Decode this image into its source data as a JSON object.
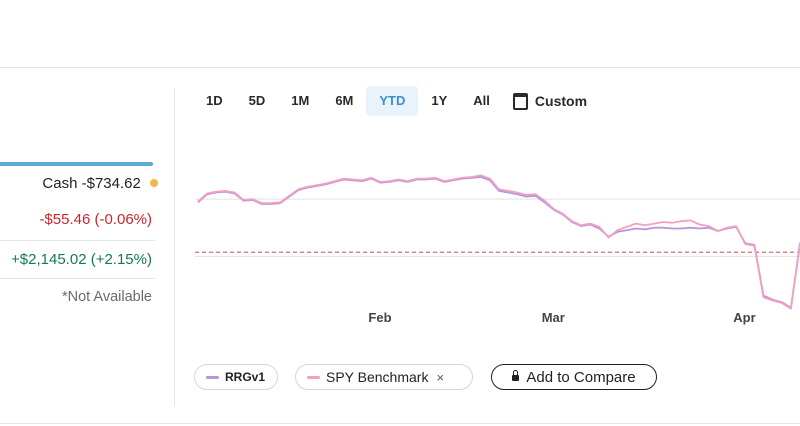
{
  "summary": {
    "cash_label": "Cash",
    "cash_value": "-$734.62",
    "day_change": "-$55.46 (-0.06%)",
    "total_change": "+$2,145.02 (+2.15%)",
    "not_available": "*Not Available"
  },
  "time_ranges": [
    {
      "label": "1D",
      "active": false
    },
    {
      "label": "5D",
      "active": false
    },
    {
      "label": "1M",
      "active": false
    },
    {
      "label": "6M",
      "active": false
    },
    {
      "label": "YTD",
      "active": true
    },
    {
      "label": "1Y",
      "active": false
    },
    {
      "label": "All",
      "active": false
    }
  ],
  "custom_label": "Custom",
  "legend": {
    "rrg_label": "RRGv1",
    "spy_label": "SPY Benchmark",
    "remove_glyph": "×",
    "compare_label": "Add to Compare"
  },
  "colors": {
    "rrg": "#b796d6",
    "spy": "#f0a0c4",
    "baseline": "#e56767",
    "accent": "#3b8fd0",
    "negative": "#c8262e",
    "positive": "#157a4f",
    "cash_dot": "#f2b64a"
  },
  "chart_data": {
    "type": "line",
    "x_tick_labels": [
      "Feb",
      "Mar",
      "Apr"
    ],
    "x": [
      "Jan 2",
      "Jan 3",
      "Jan 6",
      "Jan 7",
      "Jan 8",
      "Jan 10",
      "Jan 13",
      "Jan 14",
      "Jan 15",
      "Jan 16",
      "Jan 17",
      "Jan 21",
      "Jan 22",
      "Jan 23",
      "Jan 24",
      "Jan 27",
      "Jan 28",
      "Jan 29",
      "Jan 30",
      "Jan 31",
      "Feb 3",
      "Feb 4",
      "Feb 5",
      "Feb 6",
      "Feb 7",
      "Feb 10",
      "Feb 11",
      "Feb 12",
      "Feb 13",
      "Feb 14",
      "Feb 18",
      "Feb 19",
      "Feb 20",
      "Feb 21",
      "Feb 24",
      "Feb 25",
      "Feb 26",
      "Feb 27",
      "Feb 28",
      "Mar 3",
      "Mar 4",
      "Mar 5",
      "Mar 6",
      "Mar 7",
      "Mar 10",
      "Mar 11",
      "Mar 12",
      "Mar 13",
      "Mar 14",
      "Mar 17",
      "Mar 18",
      "Mar 19",
      "Mar 20",
      "Mar 21",
      "Mar 24",
      "Mar 25",
      "Mar 26",
      "Mar 27",
      "Mar 28",
      "Mar 31",
      "Apr 1",
      "Apr 2",
      "Apr 3",
      "Apr 4",
      "Apr 7",
      "Apr 8",
      "Apr 9"
    ],
    "series": [
      {
        "name": "RRGv1",
        "values": [
          -0.4,
          0.6,
          0.8,
          0.9,
          0.7,
          -0.2,
          -0.1,
          -0.6,
          -0.6,
          -0.5,
          0.3,
          1.1,
          1.4,
          1.6,
          1.8,
          2.1,
          2.4,
          2.3,
          2.2,
          2.5,
          2.0,
          2.1,
          2.3,
          2.1,
          2.4,
          2.4,
          2.5,
          2.1,
          2.3,
          2.5,
          2.6,
          2.7,
          2.3,
          1.0,
          0.8,
          0.6,
          0.3,
          0.4,
          -0.4,
          -1.3,
          -1.9,
          -2.8,
          -3.3,
          -3.1,
          -3.6,
          -4.6,
          -4.0,
          -3.8,
          -3.6,
          -3.7,
          -3.5,
          -3.5,
          -3.6,
          -3.6,
          -3.5,
          -3.6,
          -3.5,
          -3.9,
          -3.6,
          -3.4,
          -5.4,
          -5.6,
          -11.8,
          -12.3,
          -12.6,
          -13.3,
          -5.5
        ]
      },
      {
        "name": "SPY Benchmark",
        "values": [
          -0.3,
          0.7,
          0.9,
          1.0,
          0.8,
          -0.1,
          0.0,
          -0.5,
          -0.5,
          -0.4,
          0.4,
          1.2,
          1.5,
          1.7,
          1.9,
          2.2,
          2.5,
          2.4,
          2.3,
          2.6,
          2.1,
          2.2,
          2.4,
          2.2,
          2.5,
          2.5,
          2.6,
          2.2,
          2.4,
          2.6,
          2.7,
          2.9,
          2.5,
          1.2,
          1.0,
          0.8,
          0.5,
          0.6,
          -0.2,
          -1.2,
          -1.8,
          -2.7,
          -3.2,
          -3.0,
          -3.4,
          -4.7,
          -3.8,
          -3.4,
          -3.0,
          -3.2,
          -3.0,
          -2.8,
          -2.9,
          -2.7,
          -2.6,
          -3.1,
          -3.3,
          -3.9,
          -3.5,
          -3.3,
          -5.5,
          -5.7,
          -12.0,
          -12.4,
          -12.7,
          -13.4,
          -5.3
        ]
      }
    ],
    "baseline_y": -6.5,
    "ylim": [
      -16,
      6
    ],
    "grid": "horizontal",
    "legend_position": "bottom-left"
  }
}
